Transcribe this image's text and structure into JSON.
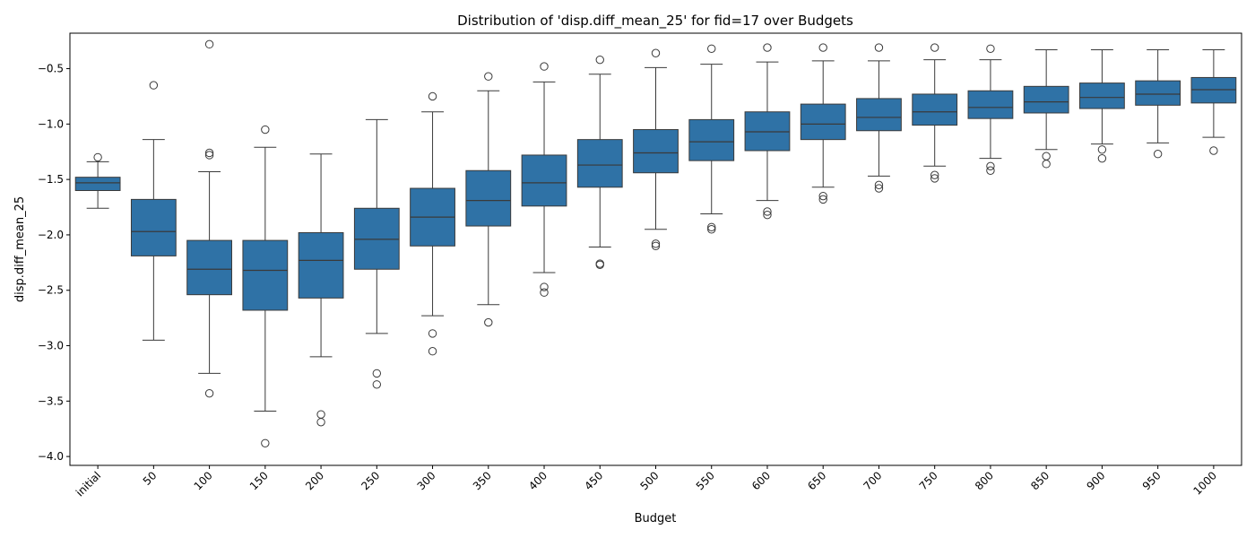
{
  "chart_data": {
    "type": "box",
    "title": "Distribution of 'disp.diff_mean_25' for fid=17 over Budgets",
    "xlabel": "Budget",
    "ylabel": "disp.diff_mean_25",
    "ylim": [
      -4.08,
      -0.18
    ],
    "yticks": [
      -4.0,
      -3.5,
      -3.0,
      -2.5,
      -2.0,
      -1.5,
      -1.0,
      -0.5
    ],
    "ytick_labels": [
      "−4.0",
      "−3.5",
      "−3.0",
      "−2.5",
      "−2.0",
      "−1.5",
      "−1.0",
      "−0.5"
    ],
    "box_color": "#2f72a6",
    "line_color": "#3a3a3a",
    "grid": false,
    "categories": [
      "initial",
      "50",
      "100",
      "150",
      "200",
      "250",
      "300",
      "350",
      "400",
      "450",
      "500",
      "550",
      "600",
      "650",
      "700",
      "750",
      "800",
      "850",
      "900",
      "950",
      "1000"
    ],
    "boxes": [
      {
        "whislo": -1.76,
        "q1": -1.6,
        "med": -1.53,
        "q3": -1.48,
        "whishi": -1.34,
        "fliers": [
          -1.3
        ]
      },
      {
        "whislo": -2.95,
        "q1": -2.19,
        "med": -1.97,
        "q3": -1.68,
        "whishi": -1.14,
        "fliers": [
          -0.65
        ]
      },
      {
        "whislo": -3.25,
        "q1": -2.54,
        "med": -2.31,
        "q3": -2.05,
        "whishi": -1.43,
        "fliers": [
          -1.26,
          -1.28,
          -0.28,
          -3.43
        ]
      },
      {
        "whislo": -3.59,
        "q1": -2.68,
        "med": -2.32,
        "q3": -2.05,
        "whishi": -1.21,
        "fliers": [
          -1.05,
          -3.88
        ]
      },
      {
        "whislo": -3.1,
        "q1": -2.57,
        "med": -2.23,
        "q3": -1.98,
        "whishi": -1.27,
        "fliers": [
          -3.62,
          -3.69
        ]
      },
      {
        "whislo": -2.89,
        "q1": -2.31,
        "med": -2.04,
        "q3": -1.76,
        "whishi": -0.96,
        "fliers": [
          -3.25,
          -3.35
        ]
      },
      {
        "whislo": -2.73,
        "q1": -2.1,
        "med": -1.84,
        "q3": -1.58,
        "whishi": -0.89,
        "fliers": [
          -0.75,
          -2.89,
          -3.05
        ]
      },
      {
        "whislo": -2.63,
        "q1": -1.92,
        "med": -1.69,
        "q3": -1.42,
        "whishi": -0.7,
        "fliers": [
          -0.57,
          -2.79
        ]
      },
      {
        "whislo": -2.34,
        "q1": -1.74,
        "med": -1.53,
        "q3": -1.28,
        "whishi": -0.62,
        "fliers": [
          -0.48,
          -2.47,
          -2.52
        ]
      },
      {
        "whislo": -2.11,
        "q1": -1.57,
        "med": -1.37,
        "q3": -1.14,
        "whishi": -0.55,
        "fliers": [
          -0.42,
          -2.26,
          -2.27
        ]
      },
      {
        "whislo": -1.95,
        "q1": -1.44,
        "med": -1.26,
        "q3": -1.05,
        "whishi": -0.49,
        "fliers": [
          -0.36,
          -2.08,
          -2.1
        ]
      },
      {
        "whislo": -1.81,
        "q1": -1.33,
        "med": -1.16,
        "q3": -0.96,
        "whishi": -0.46,
        "fliers": [
          -0.32,
          -1.93,
          -1.95
        ]
      },
      {
        "whislo": -1.69,
        "q1": -1.24,
        "med": -1.07,
        "q3": -0.89,
        "whishi": -0.44,
        "fliers": [
          -0.31,
          -1.79,
          -1.82
        ]
      },
      {
        "whislo": -1.57,
        "q1": -1.14,
        "med": -1.0,
        "q3": -0.82,
        "whishi": -0.43,
        "fliers": [
          -0.31,
          -1.65,
          -1.68
        ]
      },
      {
        "whislo": -1.47,
        "q1": -1.06,
        "med": -0.94,
        "q3": -0.77,
        "whishi": -0.43,
        "fliers": [
          -0.31,
          -1.55,
          -1.58
        ]
      },
      {
        "whislo": -1.38,
        "q1": -1.01,
        "med": -0.89,
        "q3": -0.73,
        "whishi": -0.42,
        "fliers": [
          -0.31,
          -1.46,
          -1.49
        ]
      },
      {
        "whislo": -1.31,
        "q1": -0.95,
        "med": -0.85,
        "q3": -0.7,
        "whishi": -0.42,
        "fliers": [
          -0.32,
          -1.38,
          -1.42
        ]
      },
      {
        "whislo": -1.23,
        "q1": -0.9,
        "med": -0.8,
        "q3": -0.66,
        "whishi": -0.33,
        "fliers": [
          -1.29,
          -1.36
        ]
      },
      {
        "whislo": -1.18,
        "q1": -0.86,
        "med": -0.76,
        "q3": -0.63,
        "whishi": -0.33,
        "fliers": [
          -1.23,
          -1.31
        ]
      },
      {
        "whislo": -1.17,
        "q1": -0.83,
        "med": -0.73,
        "q3": -0.61,
        "whishi": -0.33,
        "fliers": [
          -1.27
        ]
      },
      {
        "whislo": -1.12,
        "q1": -0.81,
        "med": -0.69,
        "q3": -0.58,
        "whishi": -0.33,
        "fliers": [
          -1.24
        ]
      }
    ]
  }
}
